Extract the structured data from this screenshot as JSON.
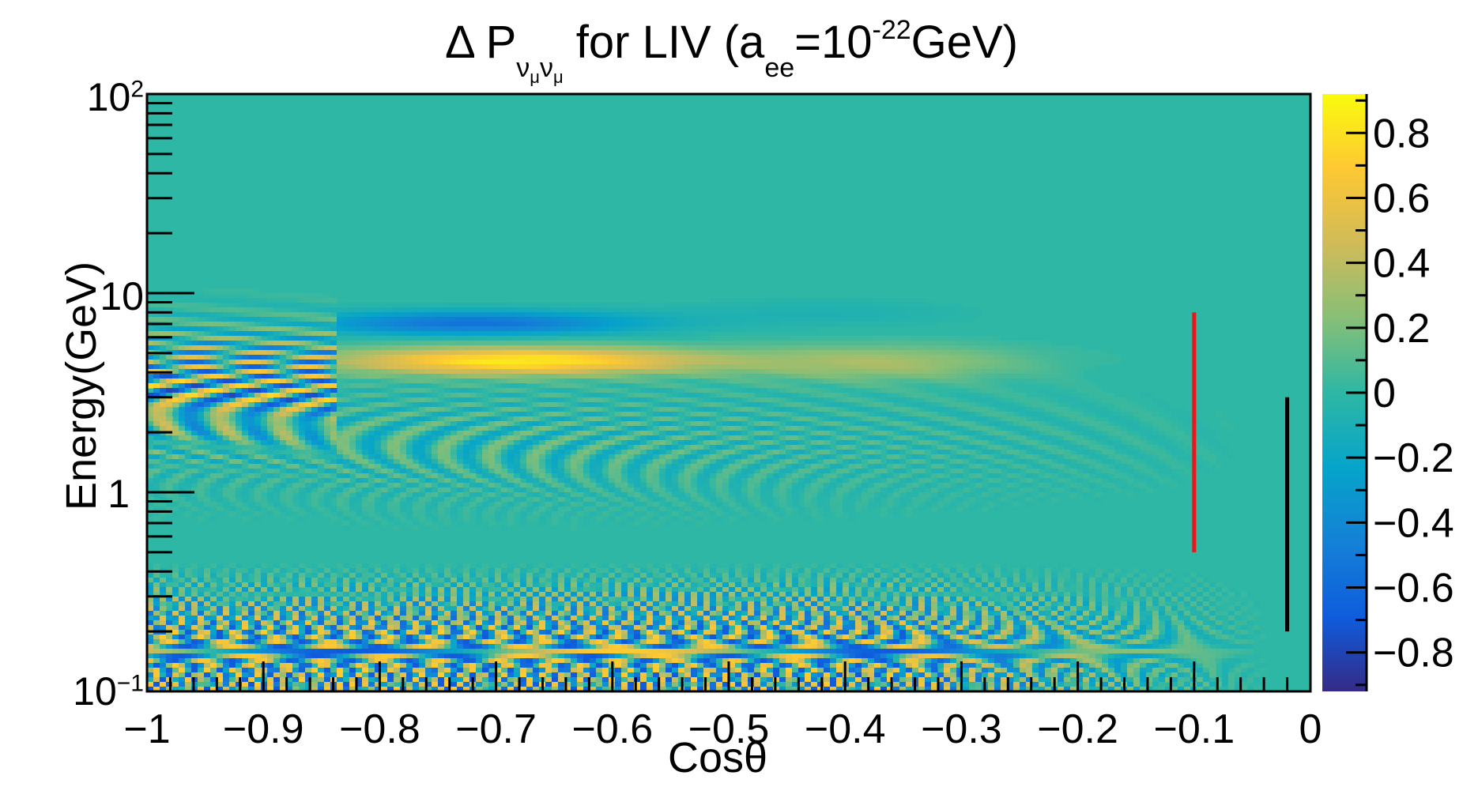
{
  "title": {
    "prefix": "Δ P",
    "sub_a": "ν",
    "sub_a2": "μ",
    "sub_b": "ν",
    "sub_b2": "μ",
    "mid": " for LIV (a",
    "sub_ee": "ee",
    "eq": "=10",
    "exp": "-22",
    "suffix": "GeV)"
  },
  "chart_data": {
    "type": "heatmap",
    "xlabel": "Cosθ",
    "ylabel": "Energy(GeV)",
    "xlim": [
      -1,
      0
    ],
    "ylim": [
      0.1,
      100
    ],
    "y_scale": "log",
    "x_tick_labels": [
      "−1",
      "−0.9",
      "−0.8",
      "−0.7",
      "−0.6",
      "−0.5",
      "−0.4",
      "−0.3",
      "−0.2",
      "−0.1",
      "0"
    ],
    "x_tick_values": [
      -1,
      -0.9,
      -0.8,
      -0.7,
      -0.6,
      -0.5,
      -0.4,
      -0.3,
      -0.2,
      -0.1,
      0
    ],
    "y_tick_labels": [
      {
        "base": "10",
        "exp": "−1",
        "value": 0.1
      },
      {
        "base": "1",
        "exp": "",
        "value": 1
      },
      {
        "base": "10",
        "exp": "",
        "value": 10
      },
      {
        "base": "10",
        "exp": "2",
        "value": 100
      }
    ],
    "z_range": [
      -0.92,
      0.92
    ],
    "colorbar_tick_labels": [
      "0.8",
      "0.6",
      "0.4",
      "0.2",
      "0",
      "−0.2",
      "−0.4",
      "−0.6",
      "−0.8"
    ],
    "colorbar_tick_values": [
      0.8,
      0.6,
      0.4,
      0.2,
      0,
      -0.2,
      -0.4,
      -0.6,
      -0.8
    ],
    "colormap": [
      "#352a87",
      "#0f5cdd",
      "#1481d6",
      "#06a4ca",
      "#2eb7a4",
      "#87bf77",
      "#d1bb59",
      "#fec832",
      "#f9fb0e"
    ],
    "markers": [
      {
        "x": -0.1,
        "y_min": 0.5,
        "y_max": 8,
        "color": "#e41a1c"
      },
      {
        "x": -0.02,
        "y_min": 0.2,
        "y_max": 3,
        "color": "#000000"
      }
    ],
    "grid": false,
    "legend": "none"
  }
}
